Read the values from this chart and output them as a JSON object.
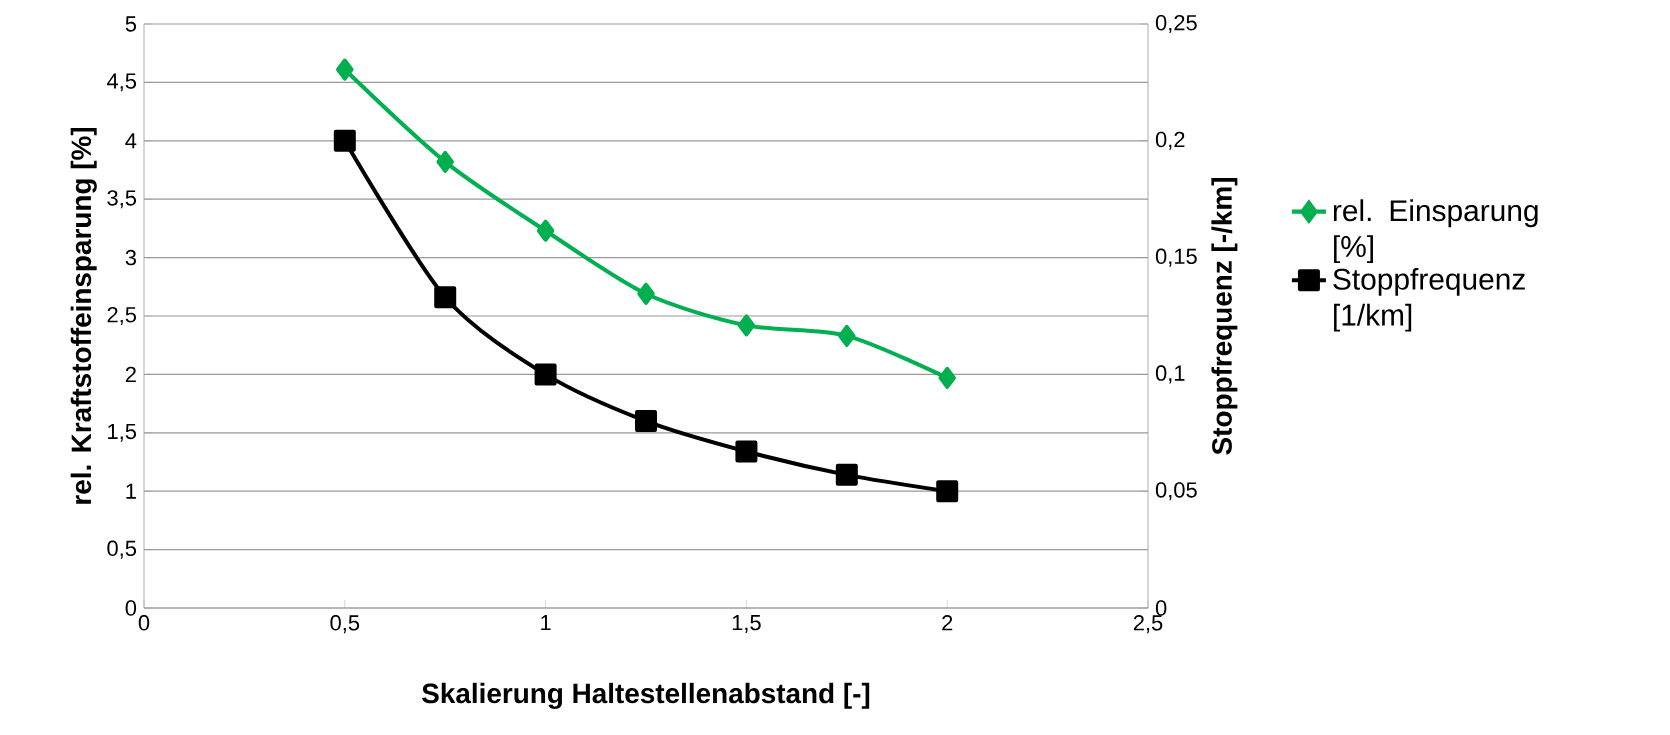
{
  "chart_data": {
    "type": "line",
    "xlabel": "Skalierung Haltestellenabstand [-]",
    "ylabel": "rel. Kraftstoffeinsparung [%]",
    "y2label": "Stoppfrequenz [-/km]",
    "x": [
      0.5,
      0.75,
      1,
      1.25,
      1.5,
      1.75,
      2
    ],
    "series": [
      {
        "name": "rel. Einsparung [%]",
        "color": "#00b050",
        "marker": "diamond",
        "values": [
          4.61,
          3.82,
          3.23,
          2.69,
          2.42,
          2.33,
          1.97
        ]
      },
      {
        "name": "Stoppfrequenz [1/km]",
        "color": "#000000",
        "marker": "square",
        "axis": "y2",
        "values": [
          0.2,
          0.133,
          0.1,
          0.08,
          0.067,
          0.057,
          0.05
        ]
      }
    ],
    "xlim": [
      0,
      2.5
    ],
    "xticks": [
      0,
      {
        "value": 0.5,
        "label": "0,5"
      },
      1,
      {
        "value": 1.5,
        "label": "1,5"
      },
      2,
      {
        "value": 2.5,
        "label": "2,5"
      }
    ],
    "ylim": [
      0,
      5
    ],
    "yticks": [
      0,
      {
        "value": 0.5,
        "label": "0,5"
      },
      1,
      {
        "value": 1.5,
        "label": "1,5"
      },
      2,
      {
        "value": 2.5,
        "label": "2,5"
      },
      3,
      {
        "value": 3.5,
        "label": "3,5"
      },
      4,
      {
        "value": 4.5,
        "label": "4,5"
      },
      5
    ],
    "y2lim": [
      0,
      0.25
    ],
    "y2ticks": [
      0,
      {
        "value": 0.05,
        "label": "0,05"
      },
      {
        "value": 0.1,
        "label": "0,1"
      },
      {
        "value": 0.15,
        "label": "0,15"
      },
      {
        "value": 0.2,
        "label": "0,2"
      },
      {
        "value": 0.25,
        "label": "0,25"
      }
    ],
    "grid": "y",
    "legend": "right",
    "line_style": "solid"
  }
}
